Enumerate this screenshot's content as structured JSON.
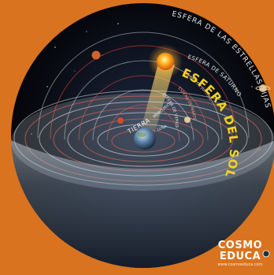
{
  "labels": {
    "fixed_stars": "ESFERA DE LAS ESTRELLAS FIJAS",
    "saturn": "ESFERA DE SATURNO",
    "jupiter": "ESFERA DE JÚPITER",
    "mars": "ESFERA DE MARTE",
    "sun": "ESFERA DEL SOL",
    "venus": "ESFERA DE VENUS",
    "mercury": "MERCURIO",
    "moon": "LUNA",
    "earth": "TIERRA"
  },
  "logo": {
    "line1": "COSMO",
    "line2": "EDUCA",
    "url": "www.cosmoeduca.com"
  },
  "colors": {
    "frame": "#d9731f",
    "space": "#050810",
    "sun_sphere_label": "#f5d21c",
    "orbit_red": "#c23c2c",
    "orbit_white": "#e8e8e8"
  }
}
